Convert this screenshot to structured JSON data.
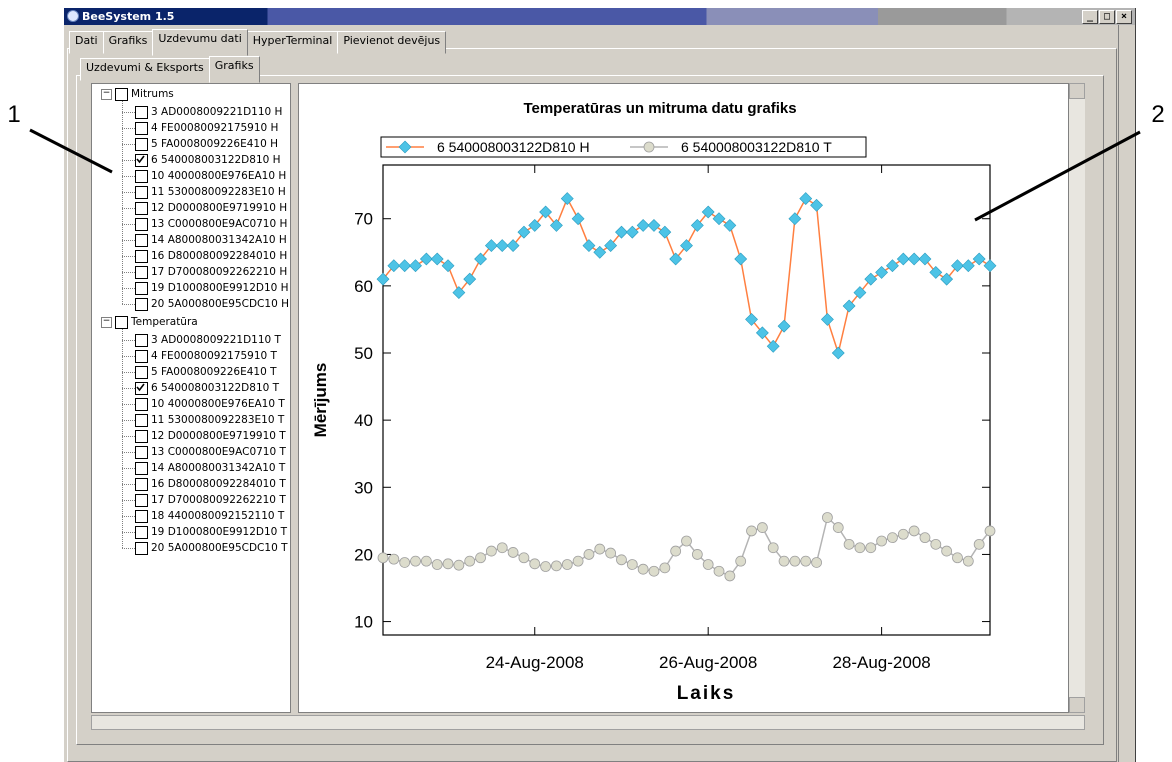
{
  "window": {
    "title": "BeeSystem 1.5"
  },
  "tabs": [
    "Dati",
    "Grafiks",
    "Uzdevumu dati",
    "HyperTerminal",
    "Pievienot devējus"
  ],
  "selected_tab": 2,
  "subtabs": [
    "Uzdevumi & Eksports",
    "Grafiks"
  ],
  "selected_subtab": 1,
  "callouts": [
    "1",
    "2"
  ],
  "tree": [
    {
      "label": "Mitrums",
      "checked": false,
      "items": [
        {
          "label": "3 AD0008009221D110 H",
          "checked": false
        },
        {
          "label": "4 FE00080092175910 H",
          "checked": false
        },
        {
          "label": "5 FA0008009226E410 H",
          "checked": false
        },
        {
          "label": "6 540008003122D810 H",
          "checked": true
        },
        {
          "label": "10 40000800E976EA10 H",
          "checked": false
        },
        {
          "label": "11 5300080092283E10 H",
          "checked": false
        },
        {
          "label": "12 D0000800E9719910 H",
          "checked": false
        },
        {
          "label": "13 C0000800E9AC0710 H",
          "checked": false
        },
        {
          "label": "14 A800080031342A10 H",
          "checked": false
        },
        {
          "label": "16 D800080092284010 H",
          "checked": false
        },
        {
          "label": "17 D700080092262210 H",
          "checked": false
        },
        {
          "label": "19 D1000800E9912D10 H",
          "checked": false
        },
        {
          "label": "20 5A000800E95CDC10 H",
          "checked": false
        }
      ]
    },
    {
      "label": "Temperatūra",
      "checked": false,
      "items": [
        {
          "label": "3 AD0008009221D110 T",
          "checked": false
        },
        {
          "label": "4 FE00080092175910 T",
          "checked": false
        },
        {
          "label": "5 FA0008009226E410 T",
          "checked": false
        },
        {
          "label": "6 540008003122D810 T",
          "checked": true
        },
        {
          "label": "10 40000800E976EA10 T",
          "checked": false
        },
        {
          "label": "11 5300080092283E10 T",
          "checked": false
        },
        {
          "label": "12 D0000800E9719910 T",
          "checked": false
        },
        {
          "label": "13 C0000800E9AC0710 T",
          "checked": false
        },
        {
          "label": "14 A800080031342A10 T",
          "checked": false
        },
        {
          "label": "16 D800080092284010 T",
          "checked": false
        },
        {
          "label": "17 D700080092262210 T",
          "checked": false
        },
        {
          "label": "18 4400080092152110 T",
          "checked": false
        },
        {
          "label": "19 D1000800E9912D10 T",
          "checked": false
        },
        {
          "label": "20 5A000800E95CDC10 T",
          "checked": false
        }
      ]
    }
  ],
  "chart_data": {
    "type": "line",
    "title": "Temperatūras un mitruma datu grafiks",
    "x_label": "Laiks",
    "y_label": "Mērījums",
    "x": [
      "2008-08-22T06:00",
      "2008-08-22T09:00",
      "2008-08-22T12:00",
      "2008-08-22T15:00",
      "2008-08-22T18:00",
      "2008-08-22T21:00",
      "2008-08-23T00:00",
      "2008-08-23T03:00",
      "2008-08-23T06:00",
      "2008-08-23T09:00",
      "2008-08-23T12:00",
      "2008-08-23T15:00",
      "2008-08-23T18:00",
      "2008-08-23T21:00",
      "2008-08-24T00:00",
      "2008-08-24T03:00",
      "2008-08-24T06:00",
      "2008-08-24T09:00",
      "2008-08-24T12:00",
      "2008-08-24T15:00",
      "2008-08-24T18:00",
      "2008-08-24T21:00",
      "2008-08-25T00:00",
      "2008-08-25T03:00",
      "2008-08-25T06:00",
      "2008-08-25T09:00",
      "2008-08-25T12:00",
      "2008-08-25T15:00",
      "2008-08-25T18:00",
      "2008-08-25T21:00",
      "2008-08-26T00:00",
      "2008-08-26T03:00",
      "2008-08-26T06:00",
      "2008-08-26T09:00",
      "2008-08-26T12:00",
      "2008-08-26T15:00",
      "2008-08-26T18:00",
      "2008-08-26T21:00",
      "2008-08-27T00:00",
      "2008-08-27T03:00",
      "2008-08-27T06:00",
      "2008-08-27T09:00",
      "2008-08-27T12:00",
      "2008-08-27T15:00",
      "2008-08-27T18:00",
      "2008-08-27T21:00",
      "2008-08-28T00:00",
      "2008-08-28T03:00",
      "2008-08-28T06:00",
      "2008-08-28T09:00",
      "2008-08-28T12:00",
      "2008-08-28T15:00",
      "2008-08-28T18:00",
      "2008-08-28T21:00",
      "2008-08-29T00:00",
      "2008-08-29T03:00",
      "2008-08-29T06:00"
    ],
    "series": [
      {
        "name": "6 540008003122D810 H",
        "color": "#ff7f40",
        "marker": "diamond",
        "marker_color": "#4dc3e6",
        "values": [
          61,
          63,
          63,
          63,
          64,
          64,
          63,
          59,
          61,
          64,
          66,
          66,
          66,
          68,
          69,
          71,
          69,
          73,
          70,
          66,
          65,
          66,
          68,
          68,
          69,
          69,
          68,
          64,
          66,
          69,
          71,
          70,
          69,
          64,
          55,
          53,
          51,
          54,
          70,
          73,
          72,
          55,
          50,
          57,
          59,
          61,
          62,
          63,
          64,
          64,
          64,
          62,
          61,
          63,
          63,
          64,
          63
        ]
      },
      {
        "name": "6 540008003122D810 T",
        "color": "#b4b4b4",
        "marker": "circle",
        "marker_color": "#dcdccc",
        "values": [
          19.5,
          19.3,
          18.8,
          19.0,
          19.0,
          18.5,
          18.6,
          18.4,
          19.0,
          19.5,
          20.5,
          21.0,
          20.3,
          19.5,
          18.6,
          18.2,
          18.3,
          18.5,
          19.0,
          20.0,
          20.8,
          20.2,
          19.2,
          18.5,
          17.8,
          17.5,
          18.0,
          20.5,
          22.0,
          20.0,
          18.5,
          17.5,
          16.8,
          19.0,
          23.5,
          24.0,
          21.0,
          19.0,
          19.0,
          19.0,
          18.8,
          25.5,
          24.0,
          21.5,
          21.0,
          21.0,
          22.0,
          22.5,
          23.0,
          23.5,
          22.5,
          21.5,
          20.5,
          19.5,
          19.0,
          21.5,
          23.5
        ]
      }
    ],
    "xlim": [
      "2008-08-22T06:00",
      "2008-08-29T06:00"
    ],
    "xticks": [
      {
        "value": "2008-08-24",
        "label": "24-Aug-2008"
      },
      {
        "value": "2008-08-26",
        "label": "26-Aug-2008"
      },
      {
        "value": "2008-08-28",
        "label": "28-Aug-2008"
      }
    ],
    "ylim": [
      8,
      78
    ],
    "yticks": [
      10,
      20,
      30,
      40,
      50,
      60,
      70
    ],
    "grid": false,
    "legend": "top"
  }
}
